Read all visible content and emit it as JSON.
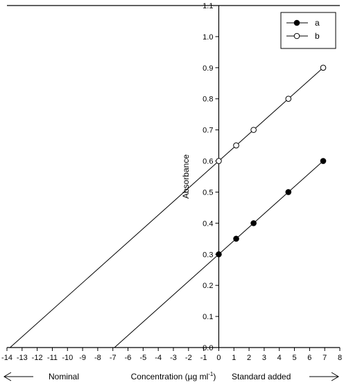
{
  "chart_data": {
    "type": "scatter",
    "title": "",
    "xlabel": "Concentration (µg ml",
    "xlabel_superscript": "-1",
    "xlabel_close": ")",
    "ylabel": "Absorbance",
    "xlim": [
      -14,
      8
    ],
    "ylim": [
      0.0,
      1.1
    ],
    "x_ticks": [
      -14,
      -13,
      -12,
      -11,
      -10,
      -9,
      -8,
      -7,
      -6,
      -5,
      -4,
      -3,
      -2,
      -1,
      0,
      1,
      2,
      3,
      4,
      5,
      6,
      7,
      8
    ],
    "y_ticks": [
      "0.0",
      "0.1",
      "0.2",
      "0.3",
      "0.4",
      "0.5",
      "0.6",
      "0.7",
      "0.8",
      "0.9",
      "1.0",
      "1.1"
    ],
    "grid": false,
    "legend_position": "top-right",
    "left_annotation": "Nominal",
    "right_annotation": "Standard added",
    "series": [
      {
        "name": "a",
        "marker": "filled-circle",
        "x": [
          0,
          1.15,
          2.3,
          4.6,
          6.9
        ],
        "y": [
          0.3,
          0.35,
          0.4,
          0.5,
          0.6
        ],
        "fit_line": {
          "x_start": -6.9,
          "x_end": 6.9,
          "slope": 0.0435,
          "intercept": 0.3
        }
      },
      {
        "name": "b",
        "marker": "open-circle",
        "x": [
          0,
          1.15,
          2.3,
          4.6,
          6.9
        ],
        "y": [
          0.6,
          0.65,
          0.7,
          0.8,
          0.9
        ],
        "fit_line": {
          "x_start": -13.8,
          "x_end": 6.9,
          "slope": 0.0435,
          "intercept": 0.6
        }
      }
    ]
  }
}
